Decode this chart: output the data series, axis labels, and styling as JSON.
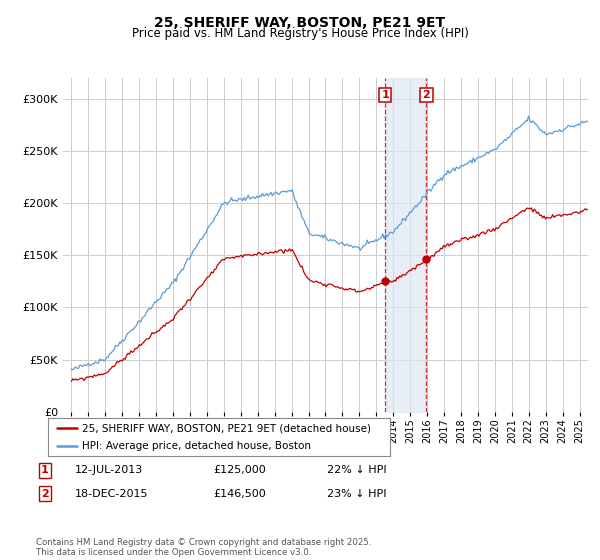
{
  "title": "25, SHERIFF WAY, BOSTON, PE21 9ET",
  "subtitle": "Price paid vs. HM Land Registry's House Price Index (HPI)",
  "legend_line1": "25, SHERIFF WAY, BOSTON, PE21 9ET (detached house)",
  "legend_line2": "HPI: Average price, detached house, Boston",
  "sale1_date": "12-JUL-2013",
  "sale1_price": "£125,000",
  "sale1_hpi": "22% ↓ HPI",
  "sale1_year": 2013.53,
  "sale1_value": 125000,
  "sale2_date": "18-DEC-2015",
  "sale2_price": "£146,500",
  "sale2_hpi": "23% ↓ HPI",
  "sale2_year": 2015.96,
  "sale2_value": 146500,
  "hpi_color": "#5b9bd5",
  "price_color": "#c00000",
  "shading_color": "#dce6f1",
  "background_color": "#ffffff",
  "grid_color": "#cccccc",
  "ylim_min": 0,
  "ylim_max": 320000,
  "xlim_min": 1994.5,
  "xlim_max": 2025.5,
  "footer_text": "Contains HM Land Registry data © Crown copyright and database right 2025.\nThis data is licensed under the Open Government Licence v3.0."
}
